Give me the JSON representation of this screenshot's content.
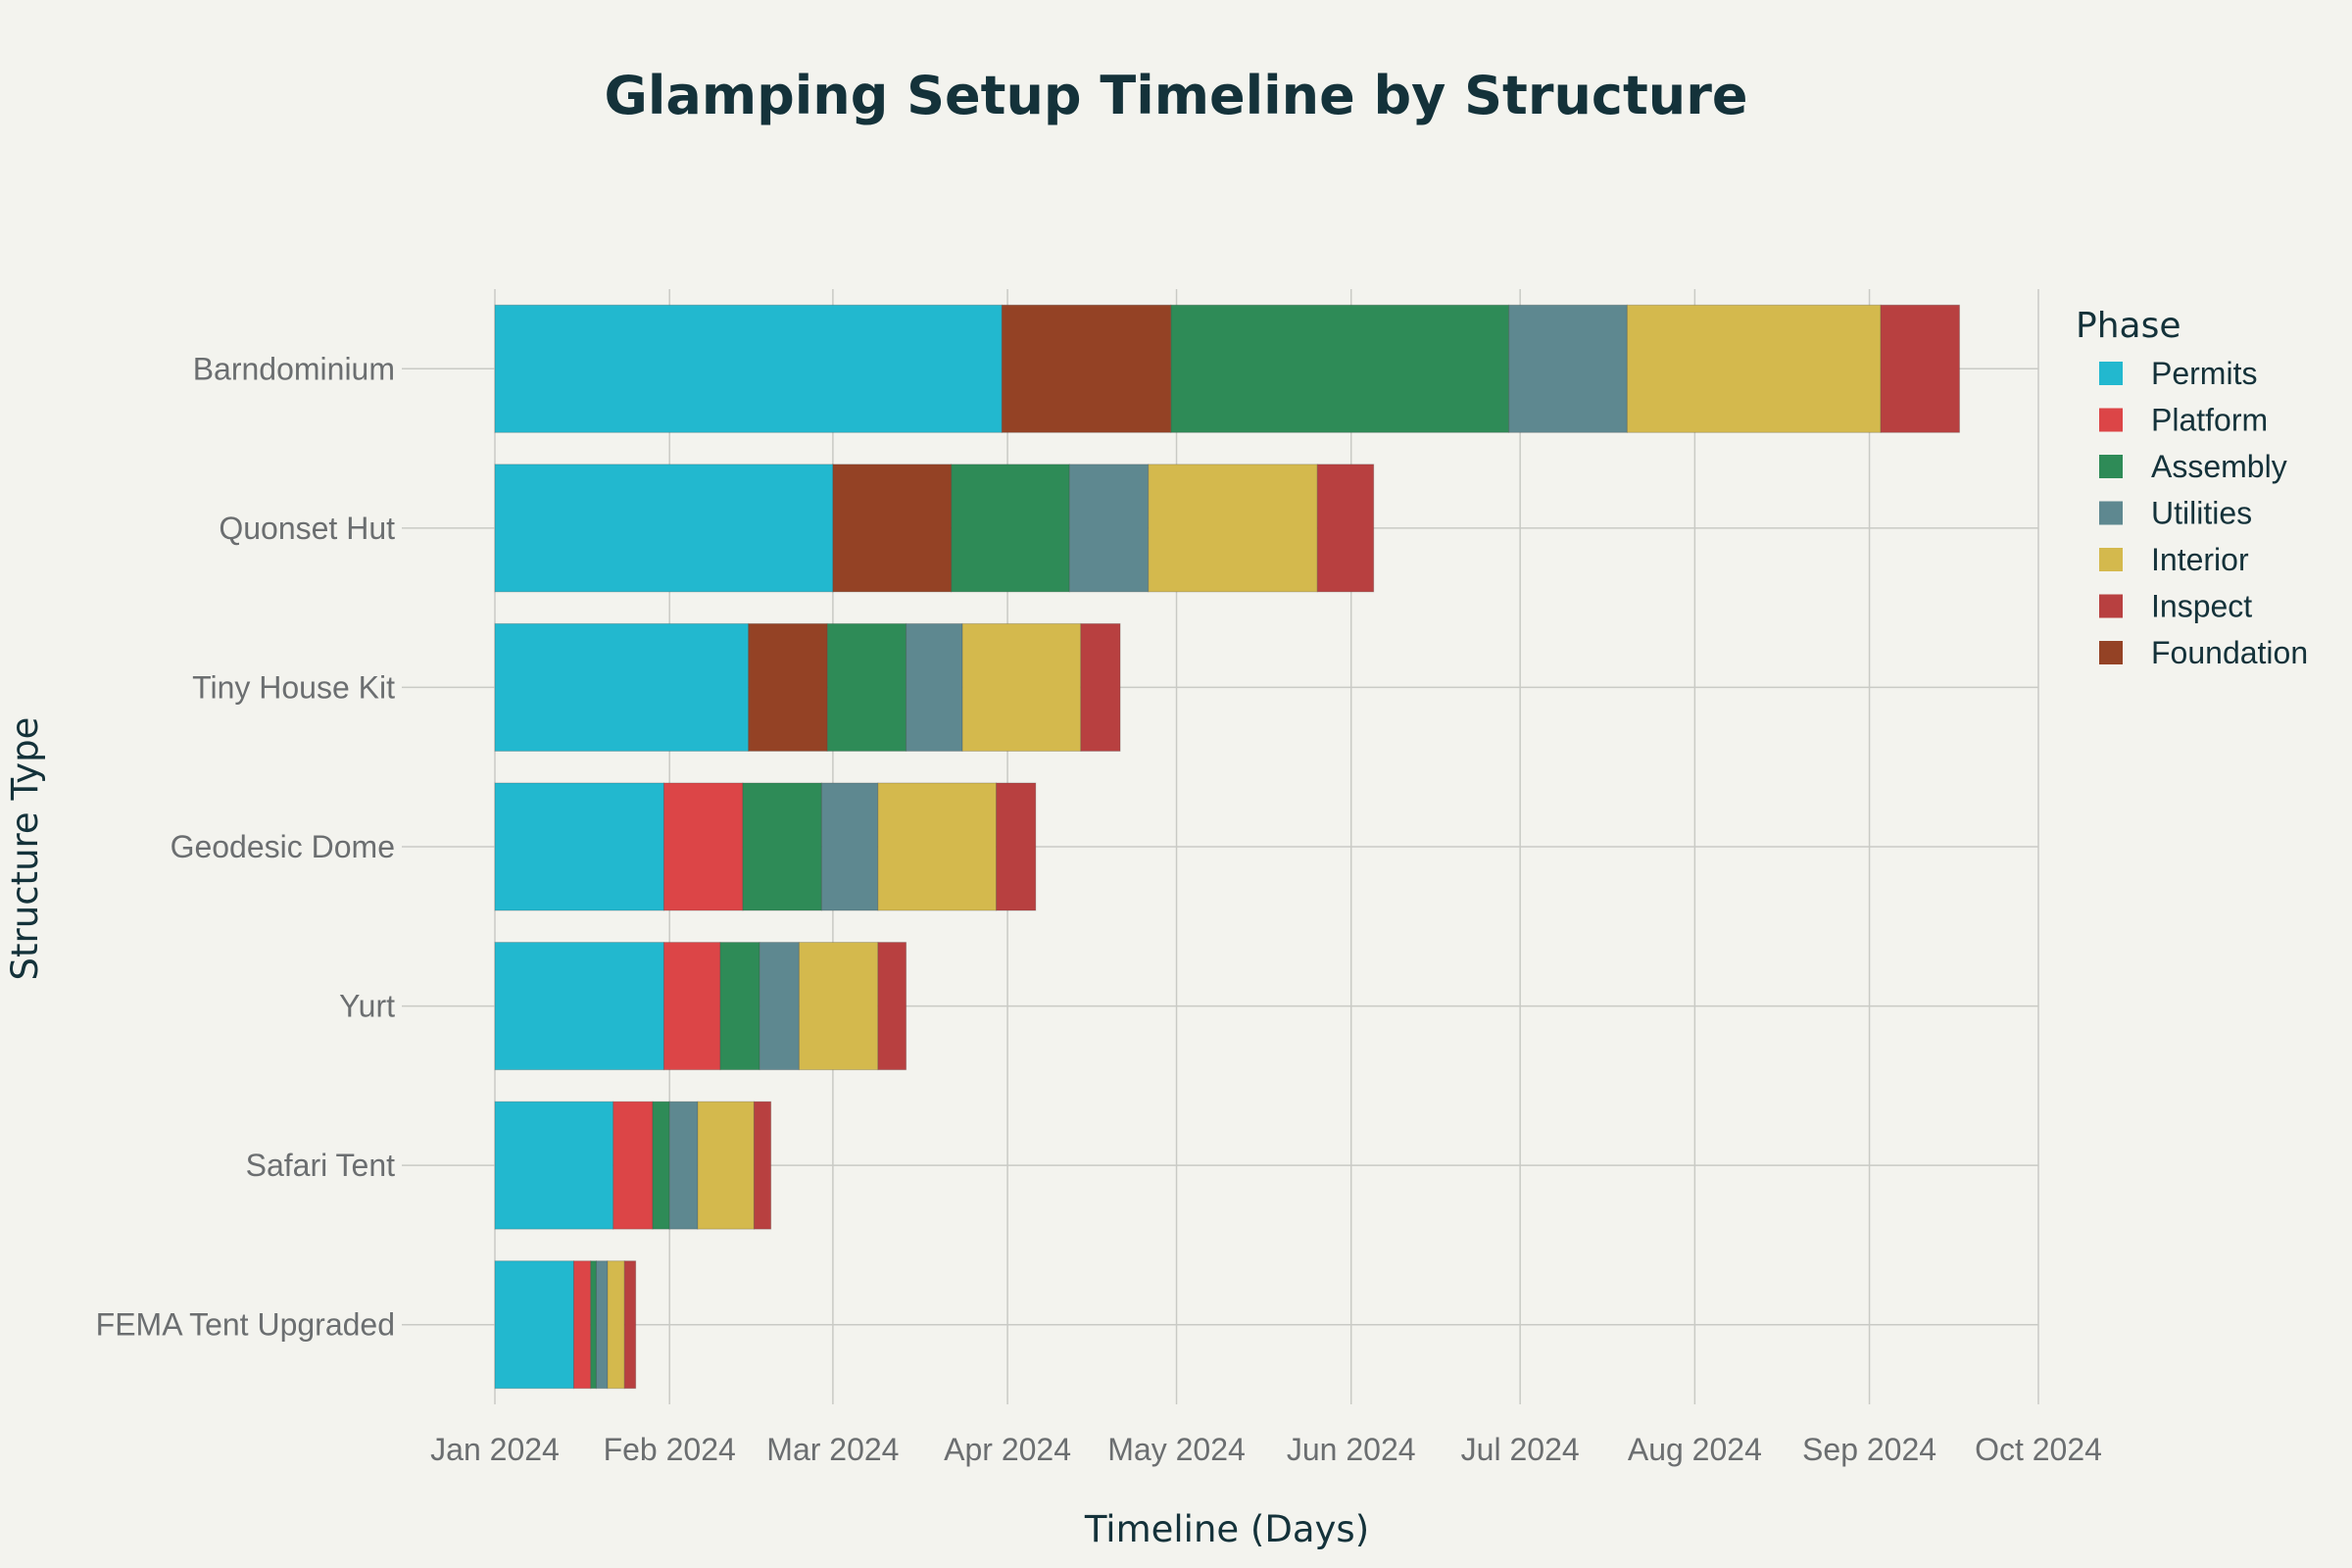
{
  "chart_data": {
    "type": "bar",
    "orientation": "horizontal",
    "stacked": true,
    "title": "Glamping Setup Timeline by Structure",
    "xlabel": "Timeline (Days)",
    "ylabel": "Structure Type",
    "x_start": "2024-01-01",
    "x_range": [
      "2024-01-01",
      "2024-10-01"
    ],
    "x_ticks": [
      "Jan 2024",
      "Feb 2024",
      "Mar 2024",
      "Apr 2024",
      "May 2024",
      "Jun 2024",
      "Jul 2024",
      "Aug 2024",
      "Sep 2024",
      "Oct 2024"
    ],
    "x_tick_dates": [
      "2024-01-01",
      "2024-02-01",
      "2024-03-01",
      "2024-04-01",
      "2024-05-01",
      "2024-06-01",
      "2024-07-01",
      "2024-08-01",
      "2024-09-01",
      "2024-10-01"
    ],
    "categories": [
      "Barndominium",
      "Quonset Hut",
      "Tiny House Kit",
      "Geodesic Dome",
      "Yurt",
      "Safari Tent",
      "FEMA Tent Upgraded"
    ],
    "legend_title": "Phase",
    "legend_position": "right",
    "grid": true,
    "series": [
      {
        "name": "Permits",
        "color": "#22b8cf",
        "segments": [
          {
            "start": "2024-01-01",
            "end": "2024-03-31"
          },
          {
            "start": "2024-01-01",
            "end": "2024-03-01"
          },
          {
            "start": "2024-01-01",
            "end": "2024-02-15"
          },
          {
            "start": "2024-01-01",
            "end": "2024-01-31"
          },
          {
            "start": "2024-01-01",
            "end": "2024-01-31"
          },
          {
            "start": "2024-01-01",
            "end": "2024-01-22"
          },
          {
            "start": "2024-01-01",
            "end": "2024-01-15"
          }
        ]
      },
      {
        "name": "Platform",
        "color": "#dc4547",
        "segments": [
          null,
          null,
          null,
          {
            "start": "2024-01-31",
            "end": "2024-02-14"
          },
          {
            "start": "2024-01-31",
            "end": "2024-02-10"
          },
          {
            "start": "2024-01-22",
            "end": "2024-01-29"
          },
          {
            "start": "2024-01-15",
            "end": "2024-01-18"
          }
        ]
      },
      {
        "name": "Assembly",
        "color": "#2e8b57",
        "segments": [
          {
            "start": "2024-04-30",
            "end": "2024-06-29"
          },
          {
            "start": "2024-03-22",
            "end": "2024-04-12"
          },
          {
            "start": "2024-02-29",
            "end": "2024-03-14"
          },
          {
            "start": "2024-02-14",
            "end": "2024-02-28"
          },
          {
            "start": "2024-02-10",
            "end": "2024-02-17"
          },
          {
            "start": "2024-01-29",
            "end": "2024-02-01"
          },
          {
            "start": "2024-01-18",
            "end": "2024-01-19"
          }
        ]
      },
      {
        "name": "Utilities",
        "color": "#5e8890",
        "segments": [
          {
            "start": "2024-06-29",
            "end": "2024-07-20"
          },
          {
            "start": "2024-04-12",
            "end": "2024-04-26"
          },
          {
            "start": "2024-03-14",
            "end": "2024-03-24"
          },
          {
            "start": "2024-02-28",
            "end": "2024-03-09"
          },
          {
            "start": "2024-02-17",
            "end": "2024-02-24"
          },
          {
            "start": "2024-02-01",
            "end": "2024-02-06"
          },
          {
            "start": "2024-01-19",
            "end": "2024-01-21"
          }
        ]
      },
      {
        "name": "Interior",
        "color": "#d4b94d",
        "segments": [
          {
            "start": "2024-07-20",
            "end": "2024-09-03"
          },
          {
            "start": "2024-04-26",
            "end": "2024-05-26"
          },
          {
            "start": "2024-03-24",
            "end": "2024-04-14"
          },
          {
            "start": "2024-03-09",
            "end": "2024-03-30"
          },
          {
            "start": "2024-02-24",
            "end": "2024-03-09"
          },
          {
            "start": "2024-02-06",
            "end": "2024-02-16"
          },
          {
            "start": "2024-01-21",
            "end": "2024-01-24"
          }
        ]
      },
      {
        "name": "Inspect",
        "color": "#b84040",
        "segments": [
          {
            "start": "2024-09-03",
            "end": "2024-09-17"
          },
          {
            "start": "2024-05-26",
            "end": "2024-06-05"
          },
          {
            "start": "2024-04-14",
            "end": "2024-04-21"
          },
          {
            "start": "2024-03-30",
            "end": "2024-04-06"
          },
          {
            "start": "2024-03-09",
            "end": "2024-03-14"
          },
          {
            "start": "2024-02-16",
            "end": "2024-02-19"
          },
          {
            "start": "2024-01-24",
            "end": "2024-01-26"
          }
        ]
      },
      {
        "name": "Foundation",
        "color": "#944225",
        "segments": [
          {
            "start": "2024-03-31",
            "end": "2024-04-30"
          },
          {
            "start": "2024-03-01",
            "end": "2024-03-22"
          },
          {
            "start": "2024-02-15",
            "end": "2024-02-29"
          },
          null,
          null,
          null,
          null
        ]
      }
    ]
  }
}
